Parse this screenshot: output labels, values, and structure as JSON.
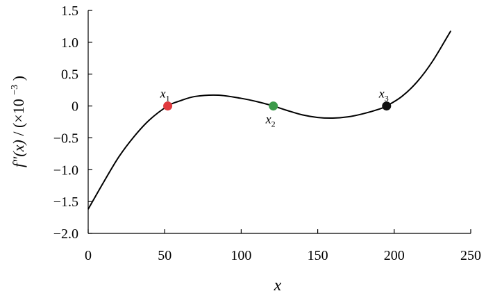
{
  "chart_data": {
    "type": "line",
    "title": "",
    "xlabel": "x",
    "ylabel": {
      "main": "f\"(x)",
      "unit": " / (×10",
      "exp": "−3",
      "close": ")"
    },
    "xlim": [
      0,
      250
    ],
    "ylim": [
      -2.0,
      1.5
    ],
    "xticks": [
      0,
      50,
      100,
      150,
      200,
      250
    ],
    "xtick_labels": [
      "0",
      "50",
      "100",
      "150",
      "200",
      "250"
    ],
    "yticks": [
      1.5,
      1.0,
      0.5,
      0,
      -0.5,
      -1.0,
      -1.5,
      -2.0
    ],
    "ytick_labels": [
      "1.5",
      "1.0",
      "0.5",
      "0",
      "−0.5",
      "−1.0",
      "−1.5",
      "−2.0"
    ],
    "grid": false,
    "series": [
      {
        "color": "#000000",
        "x": [
          0,
          10,
          20,
          30,
          40,
          52,
          60,
          70,
          85,
          100,
          110,
          121,
          130,
          140,
          150,
          160,
          170,
          180,
          190,
          195,
          205,
          215,
          225,
          237
        ],
        "y": [
          -1.62,
          -1.2,
          -0.8,
          -0.48,
          -0.22,
          0.0,
          0.08,
          0.15,
          0.17,
          0.12,
          0.07,
          0.0,
          -0.07,
          -0.14,
          -0.18,
          -0.19,
          -0.17,
          -0.12,
          -0.05,
          0.0,
          0.15,
          0.38,
          0.7,
          1.18
        ]
      }
    ],
    "points": [
      {
        "label": "x",
        "sub": "1",
        "x": 52,
        "y": 0,
        "color": "#e0393e",
        "label_pos": "above"
      },
      {
        "label": "x",
        "sub": "2",
        "x": 121,
        "y": 0,
        "color": "#3c9a4a",
        "label_pos": "below"
      },
      {
        "label": "x",
        "sub": "3",
        "x": 195,
        "y": 0,
        "color": "#111111",
        "label_pos": "above"
      }
    ]
  }
}
